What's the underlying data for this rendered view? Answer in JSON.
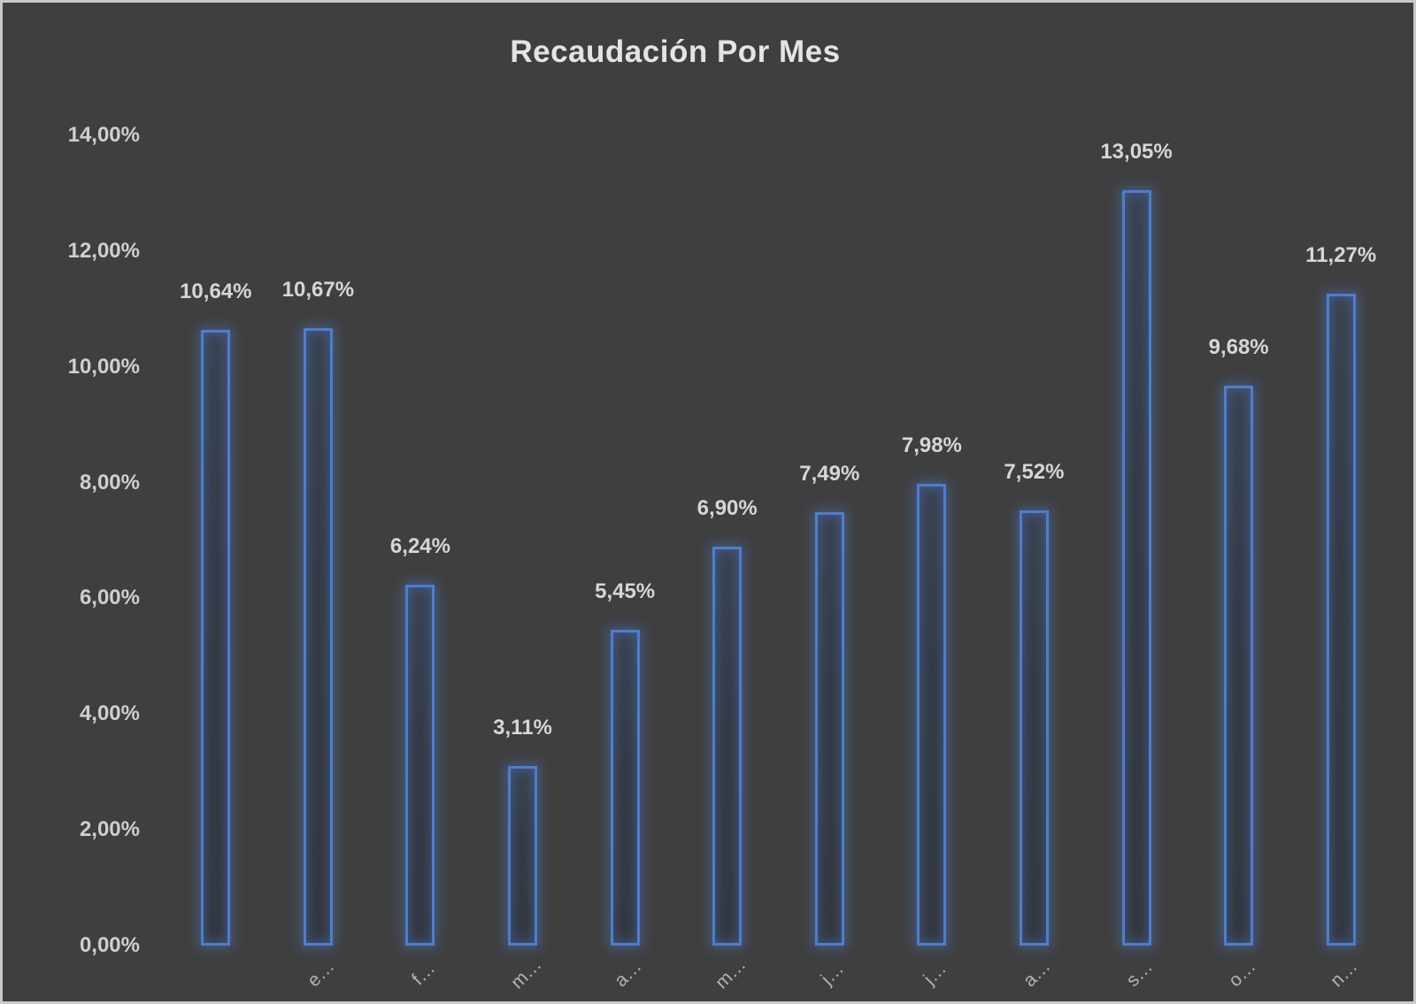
{
  "chart_data": {
    "type": "bar",
    "title": "Recaudación Por Mes",
    "categories": [
      "",
      "e…",
      "f…",
      "m…",
      "a…",
      "m…",
      "j…",
      "j…",
      "a…",
      "s…",
      "o…",
      "n…"
    ],
    "values": [
      10.64,
      10.67,
      6.24,
      3.11,
      5.45,
      6.9,
      7.49,
      7.98,
      7.52,
      13.05,
      9.68,
      11.27
    ],
    "data_labels": [
      "10,64%",
      "10,67%",
      "6,24%",
      "3,11%",
      "5,45%",
      "6,90%",
      "7,49%",
      "7,98%",
      "7,52%",
      "13,05%",
      "9,68%",
      "11,27%"
    ],
    "y_ticks": [
      "14,00%",
      "12,00%",
      "10,00%",
      "8,00%",
      "6,00%",
      "4,00%",
      "2,00%",
      "0,00%"
    ],
    "y_tick_values": [
      14,
      12,
      10,
      8,
      6,
      4,
      2,
      0
    ],
    "ylim": [
      0,
      14
    ],
    "xlabel": "",
    "ylabel": "",
    "grid": false,
    "legend": "none",
    "x_label_rotation_deg": -45,
    "colors": {
      "background": "#3f3f3f",
      "frame_border": "#c9c9c9",
      "bar_border": "#4c7dd0",
      "bar_fill": "#343941",
      "bar_glow": "#5082d7",
      "data_label_text": "#d6d6d6",
      "y_tick_text": "#cfcfcf",
      "category_text": "#b4b4b4",
      "title_text": "#e4e4e4"
    }
  }
}
